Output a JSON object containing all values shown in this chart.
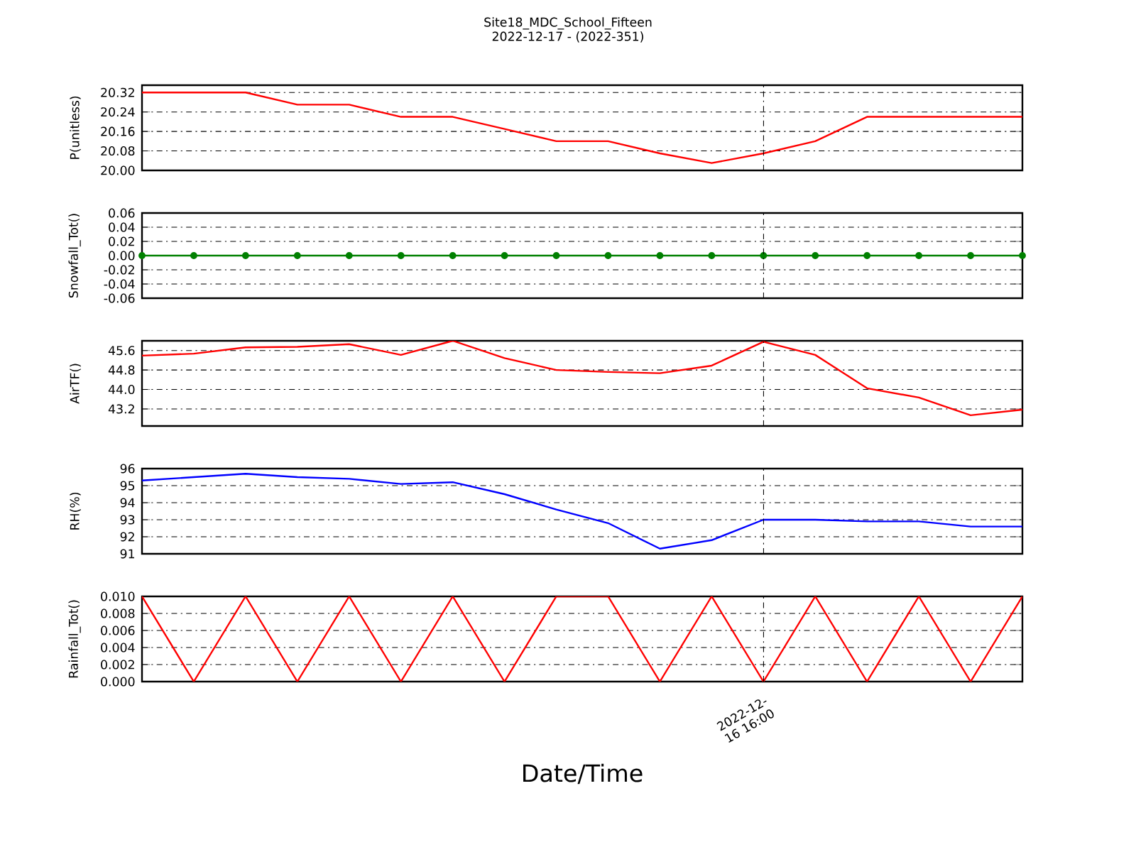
{
  "chart_data": [
    {
      "type": "line",
      "title": "Site18_MDC_School_Fifteen",
      "subtitle": "2022-12-17 - (2022-351)",
      "ylabel": "P(unitless)",
      "color": "#ff0000",
      "categories": [
        null,
        null,
        null,
        null,
        null,
        null,
        null,
        null,
        null,
        null,
        null,
        null,
        null,
        null,
        null,
        null,
        null,
        null
      ],
      "values": [
        20.32,
        20.32,
        20.32,
        20.27,
        20.27,
        20.22,
        20.22,
        20.17,
        20.12,
        20.12,
        20.07,
        20.03,
        20.07,
        20.12,
        20.22,
        20.22,
        20.22,
        20.22
      ],
      "ylim": [
        20.0,
        20.35
      ],
      "yticks": [
        {
          "value": 20.0,
          "label": "20.00"
        },
        {
          "value": 20.08,
          "label": "20.08"
        },
        {
          "value": 20.16,
          "label": "20.16"
        },
        {
          "value": 20.24,
          "label": "20.24"
        },
        {
          "value": 20.32,
          "label": "20.32"
        }
      ],
      "grid": "y"
    },
    {
      "type": "line",
      "ylabel": "Snowfall_Tot()",
      "color": "#008000",
      "marker": "circle",
      "categories": [
        null,
        null,
        null,
        null,
        null,
        null,
        null,
        null,
        null,
        null,
        null,
        null,
        null,
        null,
        null,
        null,
        null,
        null
      ],
      "values": [
        0,
        0,
        0,
        0,
        0,
        0,
        0,
        0,
        0,
        0,
        0,
        0,
        0,
        0,
        0,
        0,
        0,
        0
      ],
      "ylim": [
        -0.06,
        0.06
      ],
      "yticks": [
        {
          "value": -0.06,
          "label": "-0.06"
        },
        {
          "value": -0.04,
          "label": "-0.04"
        },
        {
          "value": -0.02,
          "label": "-0.02"
        },
        {
          "value": 0.0,
          "label": "0.00"
        },
        {
          "value": 0.02,
          "label": "0.02"
        },
        {
          "value": 0.04,
          "label": "0.04"
        },
        {
          "value": 0.06,
          "label": "0.06"
        }
      ],
      "grid": "y"
    },
    {
      "type": "line",
      "ylabel": "AirTF()",
      "color": "#ff0000",
      "categories": [
        null,
        null,
        null,
        null,
        null,
        null,
        null,
        null,
        null,
        null,
        null,
        null,
        null,
        null,
        null,
        null,
        null,
        null
      ],
      "values": [
        45.39,
        45.47,
        45.73,
        45.75,
        45.86,
        45.42,
        46.0,
        45.29,
        44.8,
        44.72,
        44.67,
        44.98,
        45.96,
        45.42,
        44.05,
        43.67,
        42.94,
        43.17
      ],
      "ylim": [
        42.5,
        46.0
      ],
      "yticks": [
        {
          "value": 43.2,
          "label": "43.2"
        },
        {
          "value": 44.0,
          "label": "44.0"
        },
        {
          "value": 44.8,
          "label": "44.8"
        },
        {
          "value": 45.6,
          "label": "45.6"
        }
      ],
      "grid": "y"
    },
    {
      "type": "line",
      "ylabel": "RH(%)",
      "color": "#0000ff",
      "categories": [
        null,
        null,
        null,
        null,
        null,
        null,
        null,
        null,
        null,
        null,
        null,
        null,
        null,
        null,
        null,
        null,
        null,
        null
      ],
      "values": [
        95.3,
        95.5,
        95.7,
        95.5,
        95.4,
        95.1,
        95.2,
        94.5,
        93.6,
        92.8,
        91.3,
        91.8,
        93.0,
        93.0,
        92.9,
        92.9,
        92.6,
        92.6
      ],
      "ylim": [
        91,
        96
      ],
      "yticks": [
        {
          "value": 91,
          "label": "91"
        },
        {
          "value": 92,
          "label": "92"
        },
        {
          "value": 93,
          "label": "93"
        },
        {
          "value": 94,
          "label": "94"
        },
        {
          "value": 95,
          "label": "95"
        },
        {
          "value": 96,
          "label": "96"
        }
      ],
      "grid": "y"
    },
    {
      "type": "line",
      "ylabel": "Rainfall_Tot()",
      "xlabel": "Date/Time",
      "color": "#ff0000",
      "categories": [
        null,
        null,
        null,
        null,
        null,
        null,
        null,
        null,
        null,
        null,
        null,
        null,
        null,
        null,
        null,
        null,
        null,
        null
      ],
      "values": [
        0.01,
        0,
        0.01,
        0,
        0.01,
        0,
        0.01,
        0,
        0.01,
        0.01,
        0,
        0.01,
        0,
        0.01,
        0,
        0.01,
        0,
        0.01
      ],
      "ylim": [
        0,
        0.01
      ],
      "yticks": [
        {
          "value": 0,
          "label": "0.000"
        },
        {
          "value": 0.002,
          "label": "0.002"
        },
        {
          "value": 0.004,
          "label": "0.004"
        },
        {
          "value": 0.006,
          "label": "0.006"
        },
        {
          "value": 0.008,
          "label": "0.008"
        },
        {
          "value": 0.01,
          "label": "0.010"
        }
      ],
      "annotations": [
        "2022-12-16 16:00"
      ],
      "grid": "y"
    }
  ]
}
